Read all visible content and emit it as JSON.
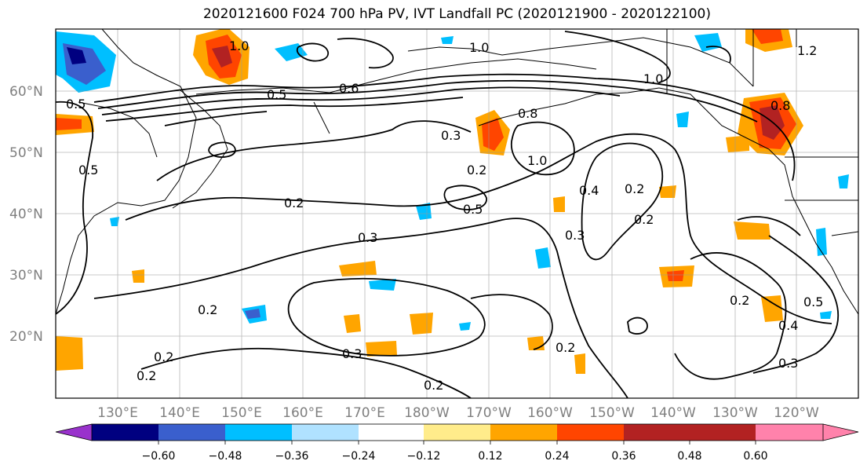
{
  "title": "2020121600 F024 700 hPa PV, IVT Landfall PC (2020121900 - 2020122100)",
  "map": {
    "lat_labels": [
      "60°N",
      "50°N",
      "40°N",
      "30°N",
      "20°N"
    ],
    "lon_labels": [
      "130°E",
      "140°E",
      "150°E",
      "160°E",
      "170°E",
      "180°W",
      "170°W",
      "160°W",
      "150°W",
      "140°W",
      "130°W",
      "120°W"
    ],
    "contour_labels": [
      "1.0",
      "1.0",
      "1.0",
      "0.5",
      "0.6",
      "0.5",
      "0.5",
      "0.3",
      "0.2",
      "1.0",
      "0.8",
      "0.2",
      "0.3",
      "0.5",
      "0.2",
      "0.2",
      "0.4",
      "0.3",
      "0.2",
      "0.8",
      "0.2",
      "0.3",
      "0.2",
      "0.2",
      "0.3",
      "0.5",
      "0.4",
      "0.2",
      "0.2",
      "1.2"
    ],
    "colors": {
      "neg_strong": "#000080",
      "neg_mid": "#3a5fcd",
      "neg": "#00bfff",
      "neg_weak": "#b0e2ff",
      "pos_weak": "#ffec8b",
      "pos": "#ffa500",
      "pos_mid": "#ff4500",
      "pos_strong": "#b22222"
    }
  },
  "colorbar": {
    "ticks": [
      "−0.60",
      "−0.48",
      "−0.36",
      "−0.24",
      "−0.12",
      "0.12",
      "0.24",
      "0.36",
      "0.48",
      "0.60"
    ],
    "colors": [
      "#9932cc",
      "#000080",
      "#3a5fcd",
      "#00bfff",
      "#b0e2ff",
      "#ffffff",
      "#ffec8b",
      "#ffa500",
      "#ff4500",
      "#b22222",
      "#ff82ab"
    ]
  }
}
